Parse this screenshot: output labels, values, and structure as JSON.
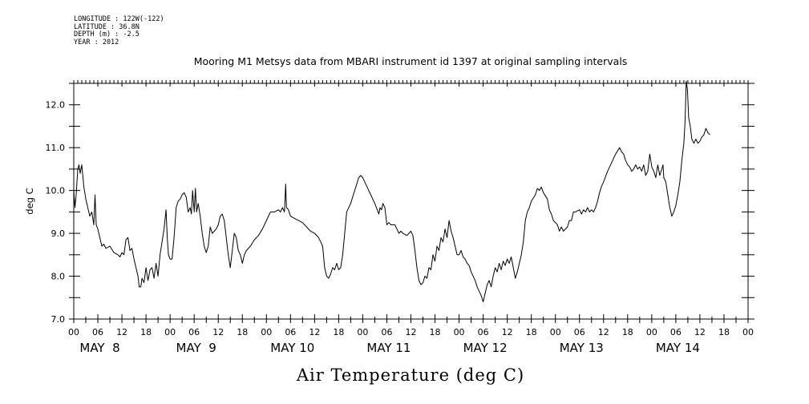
{
  "metadata": {
    "longitude": "LONGITUDE : 122W(-122)",
    "latitude": "LATITUDE : 36.8N",
    "depth": "DEPTH (m) : -2.5",
    "year": "YEAR : 2012"
  },
  "chart_data": {
    "type": "line",
    "title": "Mooring M1 Metsys data from MBARI instrument id 1397 at original sampling intervals",
    "xlabel": "Air Temperature (deg C)",
    "ylabel": "deg C",
    "ylim": [
      7.0,
      12.5
    ],
    "yticks": [
      "7.0",
      "8.0",
      "9.0",
      "10.0",
      "11.0",
      "12.0"
    ],
    "xlim_hours": [
      0,
      168
    ],
    "hour_tick_labels": [
      "00",
      "06",
      "12",
      "18",
      "00",
      "06",
      "12",
      "18",
      "00",
      "06",
      "12",
      "18",
      "00",
      "06",
      "12",
      "18",
      "00",
      "06",
      "12",
      "18",
      "00",
      "06",
      "12",
      "18",
      "00",
      "06",
      "12",
      "18",
      "00"
    ],
    "day_labels": [
      "MAY  8",
      "MAY  9",
      "MAY 10",
      "MAY 11",
      "MAY 12",
      "MAY 13",
      "MAY 14"
    ],
    "grid": false,
    "series": [
      {
        "color": "#000000",
        "points": [
          [
            0,
            10.0
          ],
          [
            0.3,
            9.6
          ],
          [
            0.6,
            9.9
          ],
          [
            1,
            10.5
          ],
          [
            1.3,
            10.6
          ],
          [
            1.6,
            10.4
          ],
          [
            2,
            10.6
          ],
          [
            2.5,
            10.1
          ],
          [
            3,
            9.8
          ],
          [
            3.5,
            9.6
          ],
          [
            4,
            9.4
          ],
          [
            4.5,
            9.5
          ],
          [
            5,
            9.2
          ],
          [
            5.3,
            9.9
          ],
          [
            5.6,
            9.2
          ],
          [
            6,
            9.1
          ],
          [
            6.5,
            8.9
          ],
          [
            7,
            8.7
          ],
          [
            7.5,
            8.75
          ],
          [
            8,
            8.65
          ],
          [
            9,
            8.7
          ],
          [
            10,
            8.55
          ],
          [
            11,
            8.5
          ],
          [
            11.5,
            8.45
          ],
          [
            12,
            8.55
          ],
          [
            12.5,
            8.5
          ],
          [
            13,
            8.85
          ],
          [
            13.5,
            8.9
          ],
          [
            14,
            8.6
          ],
          [
            14.5,
            8.65
          ],
          [
            15,
            8.4
          ],
          [
            15.5,
            8.2
          ],
          [
            16,
            8.0
          ],
          [
            16.3,
            7.75
          ],
          [
            16.7,
            7.75
          ],
          [
            17,
            7.95
          ],
          [
            17.5,
            7.85
          ],
          [
            18,
            8.2
          ],
          [
            18.5,
            7.9
          ],
          [
            19,
            8.15
          ],
          [
            19.5,
            8.2
          ],
          [
            20,
            7.95
          ],
          [
            20.5,
            8.3
          ],
          [
            21,
            8.0
          ],
          [
            21.5,
            8.5
          ],
          [
            22,
            8.8
          ],
          [
            22.5,
            9.1
          ],
          [
            23,
            9.55
          ],
          [
            23.3,
            8.9
          ],
          [
            23.6,
            8.5
          ],
          [
            24,
            8.4
          ],
          [
            24.5,
            8.4
          ],
          [
            25,
            8.9
          ],
          [
            25.5,
            9.6
          ],
          [
            26,
            9.75
          ],
          [
            26.5,
            9.8
          ],
          [
            27,
            9.9
          ],
          [
            27.5,
            9.95
          ],
          [
            28,
            9.85
          ],
          [
            28.5,
            9.5
          ],
          [
            29,
            9.6
          ],
          [
            29.3,
            9.45
          ],
          [
            29.6,
            10.0
          ],
          [
            30,
            9.5
          ],
          [
            30.3,
            10.05
          ],
          [
            30.6,
            9.5
          ],
          [
            31,
            9.7
          ],
          [
            31.5,
            9.4
          ],
          [
            32,
            9.0
          ],
          [
            32.5,
            8.7
          ],
          [
            33,
            8.55
          ],
          [
            33.5,
            8.7
          ],
          [
            34,
            9.15
          ],
          [
            34.5,
            9.0
          ],
          [
            35,
            9.05
          ],
          [
            35.5,
            9.1
          ],
          [
            36,
            9.2
          ],
          [
            36.5,
            9.4
          ],
          [
            37,
            9.45
          ],
          [
            37.5,
            9.3
          ],
          [
            38,
            8.9
          ],
          [
            38.5,
            8.5
          ],
          [
            39,
            8.2
          ],
          [
            39.5,
            8.6
          ],
          [
            40,
            9.0
          ],
          [
            40.5,
            8.9
          ],
          [
            41,
            8.6
          ],
          [
            41.5,
            8.5
          ],
          [
            42,
            8.3
          ],
          [
            42.5,
            8.5
          ],
          [
            43,
            8.6
          ],
          [
            44,
            8.7
          ],
          [
            45,
            8.85
          ],
          [
            46,
            8.95
          ],
          [
            47,
            9.1
          ],
          [
            48,
            9.3
          ],
          [
            49,
            9.5
          ],
          [
            50,
            9.5
          ],
          [
            51,
            9.55
          ],
          [
            51.5,
            9.5
          ],
          [
            52,
            9.6
          ],
          [
            52.5,
            9.5
          ],
          [
            52.8,
            10.15
          ],
          [
            53,
            9.6
          ],
          [
            53.5,
            9.55
          ],
          [
            54,
            9.4
          ],
          [
            55,
            9.35
          ],
          [
            56,
            9.3
          ],
          [
            57,
            9.25
          ],
          [
            58,
            9.15
          ],
          [
            59,
            9.05
          ],
          [
            60,
            9.0
          ],
          [
            61,
            8.9
          ],
          [
            62,
            8.7
          ],
          [
            62.5,
            8.2
          ],
          [
            63,
            8.0
          ],
          [
            63.5,
            7.95
          ],
          [
            64,
            8.05
          ],
          [
            64.5,
            8.2
          ],
          [
            65,
            8.15
          ],
          [
            65.5,
            8.3
          ],
          [
            66,
            8.15
          ],
          [
            66.5,
            8.2
          ],
          [
            67,
            8.5
          ],
          [
            67.5,
            9.0
          ],
          [
            68,
            9.5
          ],
          [
            69,
            9.7
          ],
          [
            70,
            10.0
          ],
          [
            71,
            10.3
          ],
          [
            71.5,
            10.35
          ],
          [
            72,
            10.3
          ],
          [
            73,
            10.1
          ],
          [
            74,
            9.9
          ],
          [
            75,
            9.7
          ],
          [
            76,
            9.45
          ],
          [
            76.3,
            9.6
          ],
          [
            76.7,
            9.55
          ],
          [
            77,
            9.7
          ],
          [
            77.5,
            9.6
          ],
          [
            78,
            9.2
          ],
          [
            78.5,
            9.25
          ],
          [
            79,
            9.2
          ],
          [
            80,
            9.2
          ],
          [
            80.5,
            9.1
          ],
          [
            81,
            9.0
          ],
          [
            81.5,
            9.05
          ],
          [
            82,
            9.0
          ],
          [
            83,
            8.95
          ],
          [
            84,
            9.05
          ],
          [
            84.5,
            8.95
          ],
          [
            85,
            8.6
          ],
          [
            85.5,
            8.2
          ],
          [
            86,
            7.9
          ],
          [
            86.5,
            7.8
          ],
          [
            87,
            7.85
          ],
          [
            87.5,
            8.0
          ],
          [
            88,
            7.95
          ],
          [
            88.5,
            8.2
          ],
          [
            89,
            8.15
          ],
          [
            89.5,
            8.5
          ],
          [
            90,
            8.35
          ],
          [
            90.5,
            8.7
          ],
          [
            91,
            8.6
          ],
          [
            91.5,
            8.9
          ],
          [
            92,
            8.8
          ],
          [
            92.5,
            9.1
          ],
          [
            93,
            8.9
          ],
          [
            93.5,
            9.3
          ],
          [
            94,
            9.05
          ],
          [
            94.5,
            8.9
          ],
          [
            95,
            8.7
          ],
          [
            95.5,
            8.5
          ],
          [
            96,
            8.5
          ],
          [
            96.5,
            8.6
          ],
          [
            97,
            8.45
          ],
          [
            97.5,
            8.4
          ],
          [
            98,
            8.3
          ],
          [
            98.5,
            8.25
          ],
          [
            99,
            8.1
          ],
          [
            99.5,
            8.0
          ],
          [
            100,
            7.9
          ],
          [
            100.5,
            7.75
          ],
          [
            101,
            7.65
          ],
          [
            101.5,
            7.55
          ],
          [
            102,
            7.4
          ],
          [
            102.5,
            7.6
          ],
          [
            103,
            7.8
          ],
          [
            103.5,
            7.9
          ],
          [
            104,
            7.75
          ],
          [
            104.5,
            8.0
          ],
          [
            105,
            8.2
          ],
          [
            105.5,
            8.1
          ],
          [
            106,
            8.3
          ],
          [
            106.5,
            8.15
          ],
          [
            107,
            8.35
          ],
          [
            107.5,
            8.25
          ],
          [
            108,
            8.4
          ],
          [
            108.5,
            8.3
          ],
          [
            109,
            8.45
          ],
          [
            109.5,
            8.2
          ],
          [
            110,
            7.95
          ],
          [
            110.5,
            8.1
          ],
          [
            111,
            8.3
          ],
          [
            111.5,
            8.5
          ],
          [
            112,
            8.8
          ],
          [
            112.5,
            9.3
          ],
          [
            113,
            9.5
          ],
          [
            113.5,
            9.6
          ],
          [
            114,
            9.75
          ],
          [
            115,
            9.9
          ],
          [
            115.5,
            10.05
          ],
          [
            116,
            10.0
          ],
          [
            116.5,
            10.08
          ],
          [
            117,
            9.95
          ],
          [
            118,
            9.8
          ],
          [
            118.5,
            9.55
          ],
          [
            119,
            9.45
          ],
          [
            119.5,
            9.3
          ],
          [
            120,
            9.25
          ],
          [
            120.5,
            9.2
          ],
          [
            121,
            9.05
          ],
          [
            121.5,
            9.15
          ],
          [
            122,
            9.05
          ],
          [
            123,
            9.15
          ],
          [
            123.5,
            9.3
          ],
          [
            124,
            9.3
          ],
          [
            124.5,
            9.5
          ],
          [
            125,
            9.5
          ],
          [
            126,
            9.55
          ],
          [
            126.5,
            9.45
          ],
          [
            127,
            9.55
          ],
          [
            127.5,
            9.5
          ],
          [
            128,
            9.6
          ],
          [
            128.5,
            9.5
          ],
          [
            129,
            9.55
          ],
          [
            129.5,
            9.5
          ],
          [
            130,
            9.6
          ],
          [
            130.5,
            9.75
          ],
          [
            131,
            9.95
          ],
          [
            131.5,
            10.1
          ],
          [
            132,
            10.2
          ],
          [
            133,
            10.45
          ],
          [
            134,
            10.65
          ],
          [
            135,
            10.85
          ],
          [
            136,
            11.0
          ],
          [
            136.5,
            10.9
          ],
          [
            137,
            10.85
          ],
          [
            137.5,
            10.7
          ],
          [
            138,
            10.6
          ],
          [
            138.5,
            10.55
          ],
          [
            139,
            10.45
          ],
          [
            139.5,
            10.5
          ],
          [
            140,
            10.6
          ],
          [
            140.5,
            10.5
          ],
          [
            141,
            10.55
          ],
          [
            141.5,
            10.45
          ],
          [
            142,
            10.6
          ],
          [
            142.5,
            10.35
          ],
          [
            143,
            10.45
          ],
          [
            143.5,
            10.85
          ],
          [
            144,
            10.55
          ],
          [
            144.5,
            10.45
          ],
          [
            145,
            10.3
          ],
          [
            145.5,
            10.6
          ],
          [
            146,
            10.35
          ],
          [
            146.5,
            10.5
          ],
          [
            146.8,
            10.6
          ],
          [
            147,
            10.3
          ],
          [
            147.5,
            10.2
          ],
          [
            148,
            9.9
          ],
          [
            148.5,
            9.6
          ],
          [
            149,
            9.4
          ],
          [
            149.5,
            9.5
          ],
          [
            150,
            9.65
          ],
          [
            150.5,
            9.9
          ],
          [
            151,
            10.2
          ],
          [
            151.5,
            10.7
          ],
          [
            152,
            11.1
          ],
          [
            152.3,
            11.6
          ],
          [
            152.6,
            12.55
          ],
          [
            152.9,
            12.35
          ],
          [
            153.2,
            11.7
          ],
          [
            153.6,
            11.5
          ],
          [
            154,
            11.2
          ],
          [
            154.5,
            11.1
          ],
          [
            155,
            11.2
          ],
          [
            155.5,
            11.1
          ],
          [
            156,
            11.15
          ],
          [
            156.5,
            11.25
          ],
          [
            157,
            11.3
          ],
          [
            157.5,
            11.45
          ],
          [
            158,
            11.35
          ],
          [
            158.5,
            11.3
          ]
        ]
      }
    ]
  }
}
